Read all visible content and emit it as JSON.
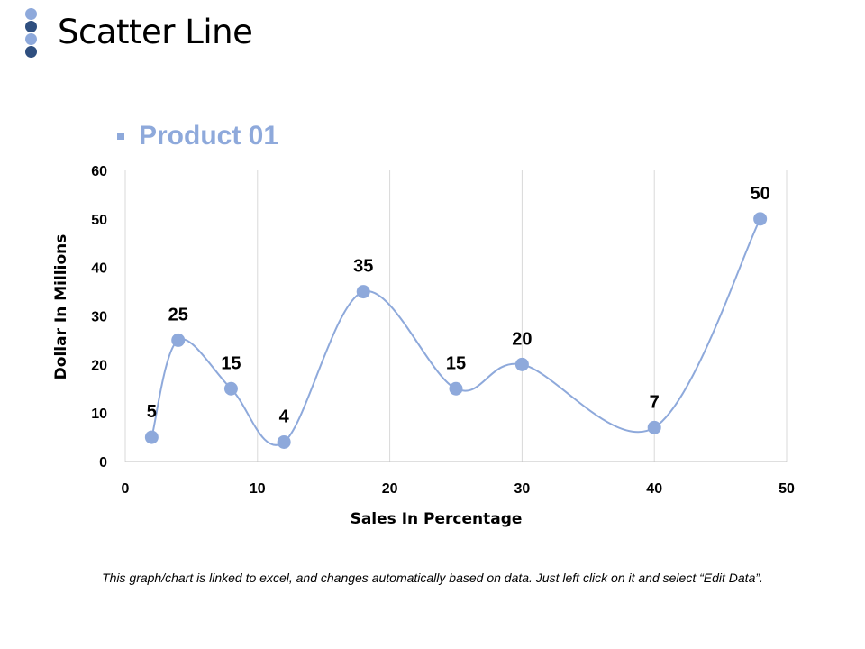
{
  "slide": {
    "title": "Scatter Line",
    "footnote": "This graph/chart is linked to excel, and changes automatically based on data. Just left click on it and select “Edit Data”."
  },
  "colors": {
    "deco_light": "#8EA9DB",
    "deco_dark": "#2F4F7F",
    "series": "#8EA9DB",
    "series_marker": "#8EA9DB",
    "grid": "#D9D9D9",
    "axis": "#BFBFBF",
    "text": "#000000"
  },
  "chart_data": {
    "type": "scatter",
    "title": "",
    "xlabel": "Sales In Percentage",
    "ylabel": "Dollar In Millions",
    "xlim": [
      0,
      50
    ],
    "ylim": [
      0,
      60
    ],
    "xticks": [
      0,
      10,
      20,
      30,
      40,
      50
    ],
    "yticks": [
      0,
      10,
      20,
      30,
      40,
      50,
      60
    ],
    "grid": "vertical",
    "legend": "top-left",
    "series": [
      {
        "name": "Product 01",
        "smooth": true,
        "x": [
          2,
          4,
          8,
          12,
          18,
          25,
          30,
          40,
          48
        ],
        "y": [
          5,
          25,
          15,
          4,
          35,
          15,
          20,
          7,
          50
        ],
        "labels": [
          "5",
          "25",
          "15",
          "4",
          "35",
          "15",
          "20",
          "7",
          "50"
        ]
      }
    ]
  }
}
